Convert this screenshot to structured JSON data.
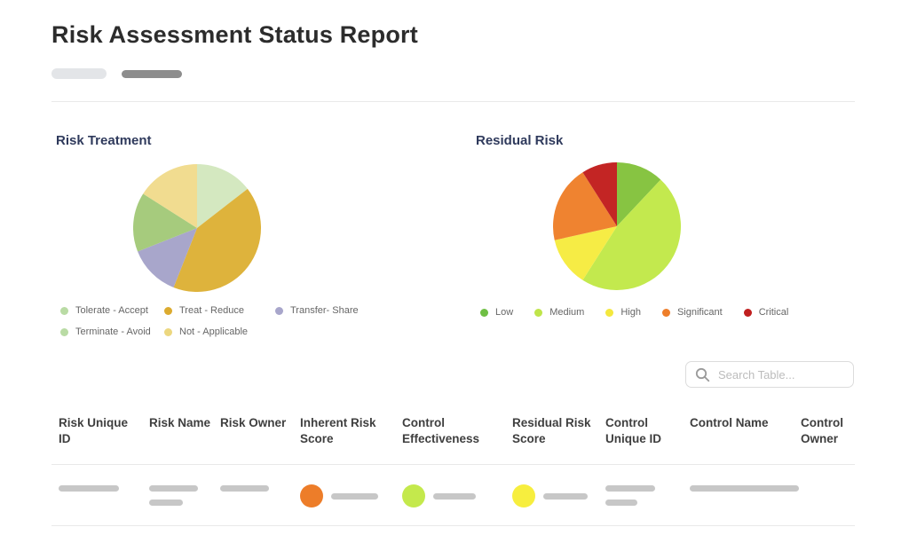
{
  "page": {
    "title": "Risk Assessment Status Report"
  },
  "chart_data": [
    {
      "type": "pie",
      "title": "Risk Treatment",
      "labels": [
        "Tolerate - Accept",
        "Treat - Reduce",
        "Transfer- Share",
        "Terminate - Avoid",
        "Not - Applicable"
      ],
      "values_pct": [
        14.5,
        41.5,
        13,
        15,
        16
      ],
      "colors": [
        "#d4e8c0",
        "#deb33c",
        "#a8a6cb",
        "#a6cb7d",
        "#f1dc90"
      ],
      "legend_colors": [
        "#b9dba4",
        "#dcab2f",
        "#a8a6cb",
        "#b9dba4",
        "#ecd77f"
      ],
      "start_angle_deg": 0,
      "direction": "clockwise",
      "legend_position": "bottom",
      "data_labels": false
    },
    {
      "type": "pie",
      "title": "Residual Risk",
      "labels": [
        "Low",
        "Medium",
        "High",
        "Significant",
        "Critical"
      ],
      "values_pct": [
        12,
        47,
        12.5,
        19.5,
        9
      ],
      "colors": [
        "#87c442",
        "#c3e94e",
        "#f6ec45",
        "#ef8330",
        "#c32524"
      ],
      "legend_colors": [
        "#6fbf44",
        "#bfe54a",
        "#f4e83e",
        "#ee7e2a",
        "#c01f1f"
      ],
      "start_angle_deg": 0,
      "direction": "clockwise",
      "legend_position": "bottom",
      "data_labels": false
    }
  ],
  "search": {
    "placeholder": "Search Table..."
  },
  "table": {
    "columns": [
      "Risk Unique ID",
      "Risk Name",
      "Risk Owner",
      "Inherent Risk Score",
      "Control Effectiveness",
      "Residual Risk Score",
      "Control Unique ID",
      "Control Name",
      "Control Owner"
    ],
    "skeleton_row": {
      "inherent_risk_dot_color": "#ed7d29",
      "control_effectiveness_dot_color": "#c4e94c",
      "residual_risk_dot_color": "#f7ee3e"
    }
  }
}
